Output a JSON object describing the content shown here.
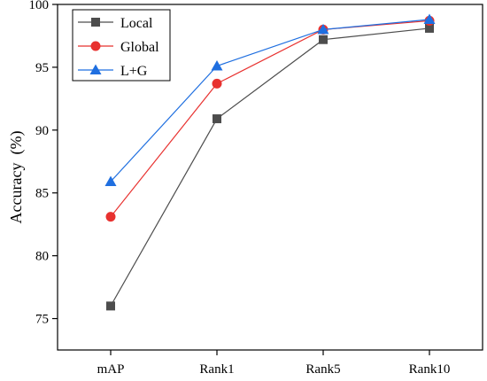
{
  "chart_data": {
    "type": "line",
    "title": "",
    "xlabel": "",
    "ylabel": "Accuracy  (%)",
    "categories": [
      "mAP",
      "Rank1",
      "Rank5",
      "Rank10"
    ],
    "ylim": [
      72.5,
      100
    ],
    "yticks": [
      75,
      80,
      85,
      90,
      95,
      100
    ],
    "ytick_labels": [
      "75",
      "80",
      "85",
      "90",
      "95",
      "100"
    ],
    "grid": false,
    "legend_position": "top-left",
    "series": [
      {
        "name": "Local",
        "marker": "square",
        "color": "#4d4d4d",
        "values": [
          76.0,
          90.9,
          97.2,
          98.1
        ]
      },
      {
        "name": "Global",
        "marker": "circle",
        "color": "#e8312f",
        "values": [
          83.1,
          93.7,
          98.0,
          98.7
        ]
      },
      {
        "name": "L+G",
        "marker": "triangle",
        "color": "#1f6fe0",
        "values": [
          85.9,
          95.1,
          98.0,
          98.8
        ]
      }
    ]
  }
}
